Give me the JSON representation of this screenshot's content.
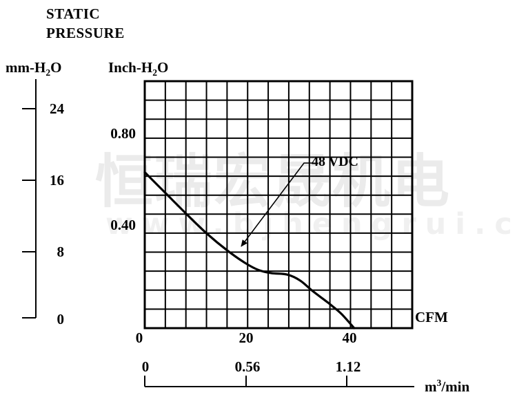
{
  "title": {
    "line1": "STATIC",
    "line2": "PRESSURE"
  },
  "watermark": {
    "cn": "恒瑞宏晟机电",
    "url": "www.bjhengrui.cn"
  },
  "annotation": {
    "label": "48 VDC"
  },
  "chart_data": {
    "type": "line",
    "title": "STATIC PRESSURE",
    "grid": {
      "cols": 13,
      "rows": 13,
      "grid_on": true
    },
    "x_axis": {
      "label": "CFM",
      "ticks": [
        0,
        20,
        40
      ],
      "tick_labels": [
        "0",
        "20",
        "40"
      ],
      "range": [
        0,
        52
      ]
    },
    "x_axis_secondary": {
      "label_pre": "m",
      "label_sup": "3",
      "label_post": "/min",
      "ticks": [
        0,
        0.56,
        1.12
      ],
      "tick_labels": [
        "0",
        "0.56",
        "1.12"
      ]
    },
    "y_axis_left": {
      "label_pre": "mm-H",
      "label_sub": "2",
      "label_post": "O",
      "ticks": [
        24,
        16,
        8,
        0
      ],
      "tick_labels": [
        "24",
        "16",
        "8",
        "0"
      ],
      "range": [
        0,
        28
      ]
    },
    "y_axis_inner": {
      "label_pre": "Inch-H",
      "label_sub": "2",
      "label_post": "O",
      "ticks": [
        0.8,
        0.4
      ],
      "tick_labels": [
        "0.80",
        "0.40"
      ]
    },
    "series": [
      {
        "name": "48 VDC",
        "points_cfm_mmh2o": [
          [
            0,
            17.3
          ],
          [
            4,
            15.0
          ],
          [
            8,
            12.7
          ],
          [
            12,
            10.5
          ],
          [
            16,
            8.6
          ],
          [
            19.5,
            7.2
          ],
          [
            22,
            6.45
          ],
          [
            24.5,
            6.1
          ],
          [
            27.5,
            5.95
          ],
          [
            30,
            5.3
          ],
          [
            32.5,
            4.1
          ],
          [
            35.5,
            2.8
          ],
          [
            38,
            1.6
          ],
          [
            40.5,
            0
          ]
        ]
      }
    ]
  }
}
